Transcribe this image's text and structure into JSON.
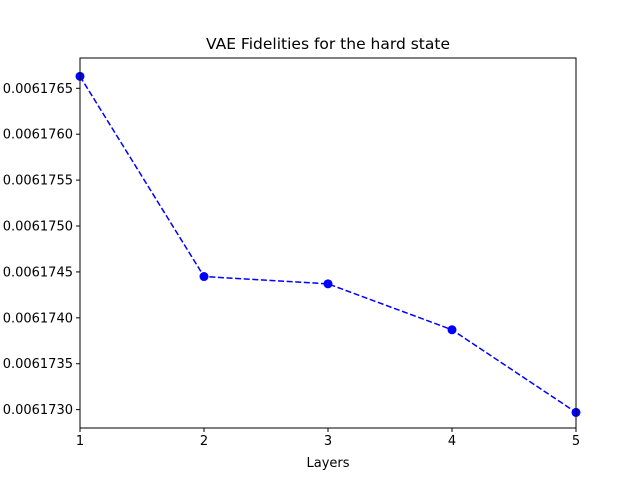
{
  "chart_data": {
    "type": "line",
    "title": "VAE Fidelities for the hard state",
    "xlabel": "Layers",
    "ylabel": "",
    "x": [
      1,
      2,
      3,
      4,
      5
    ],
    "series": [
      {
        "values": [
          0.00617663,
          0.00617445,
          0.00617437,
          0.00617387,
          0.00617297
        ],
        "color": "#0000ff",
        "line_style": "dashed",
        "marker": "circle"
      }
    ],
    "xlim": [
      1,
      5
    ],
    "ylim": [
      0.0061728,
      0.00617683
    ],
    "x_ticks": [
      1,
      2,
      3,
      4,
      5
    ],
    "x_tick_labels": [
      "1",
      "2",
      "3",
      "4",
      "5"
    ],
    "y_ticks": [
      0.006173,
      0.0061735,
      0.006174,
      0.0061745,
      0.006175,
      0.0061755,
      0.006176,
      0.0061765
    ],
    "y_tick_labels": [
      "0.0061730",
      "0.0061735",
      "0.0061740",
      "0.0061745",
      "0.0061750",
      "0.0061755",
      "0.0061760",
      "0.0061765"
    ],
    "grid": false,
    "legend": "none"
  }
}
